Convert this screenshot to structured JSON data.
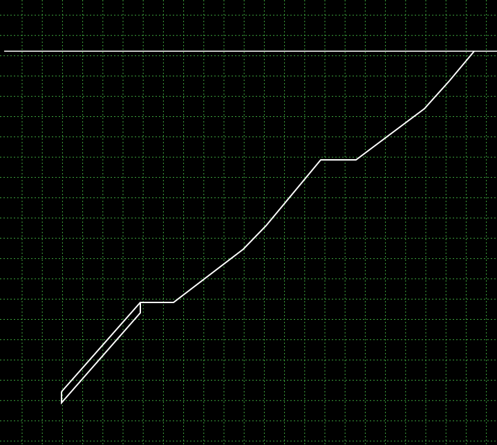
{
  "colors": {
    "background": "#000000",
    "grid": "#3fa83f",
    "stroke": "#ffffff"
  },
  "grid": {
    "style": "dotted",
    "visible": true
  },
  "shape": {
    "kind": "polyline-outline"
  }
}
